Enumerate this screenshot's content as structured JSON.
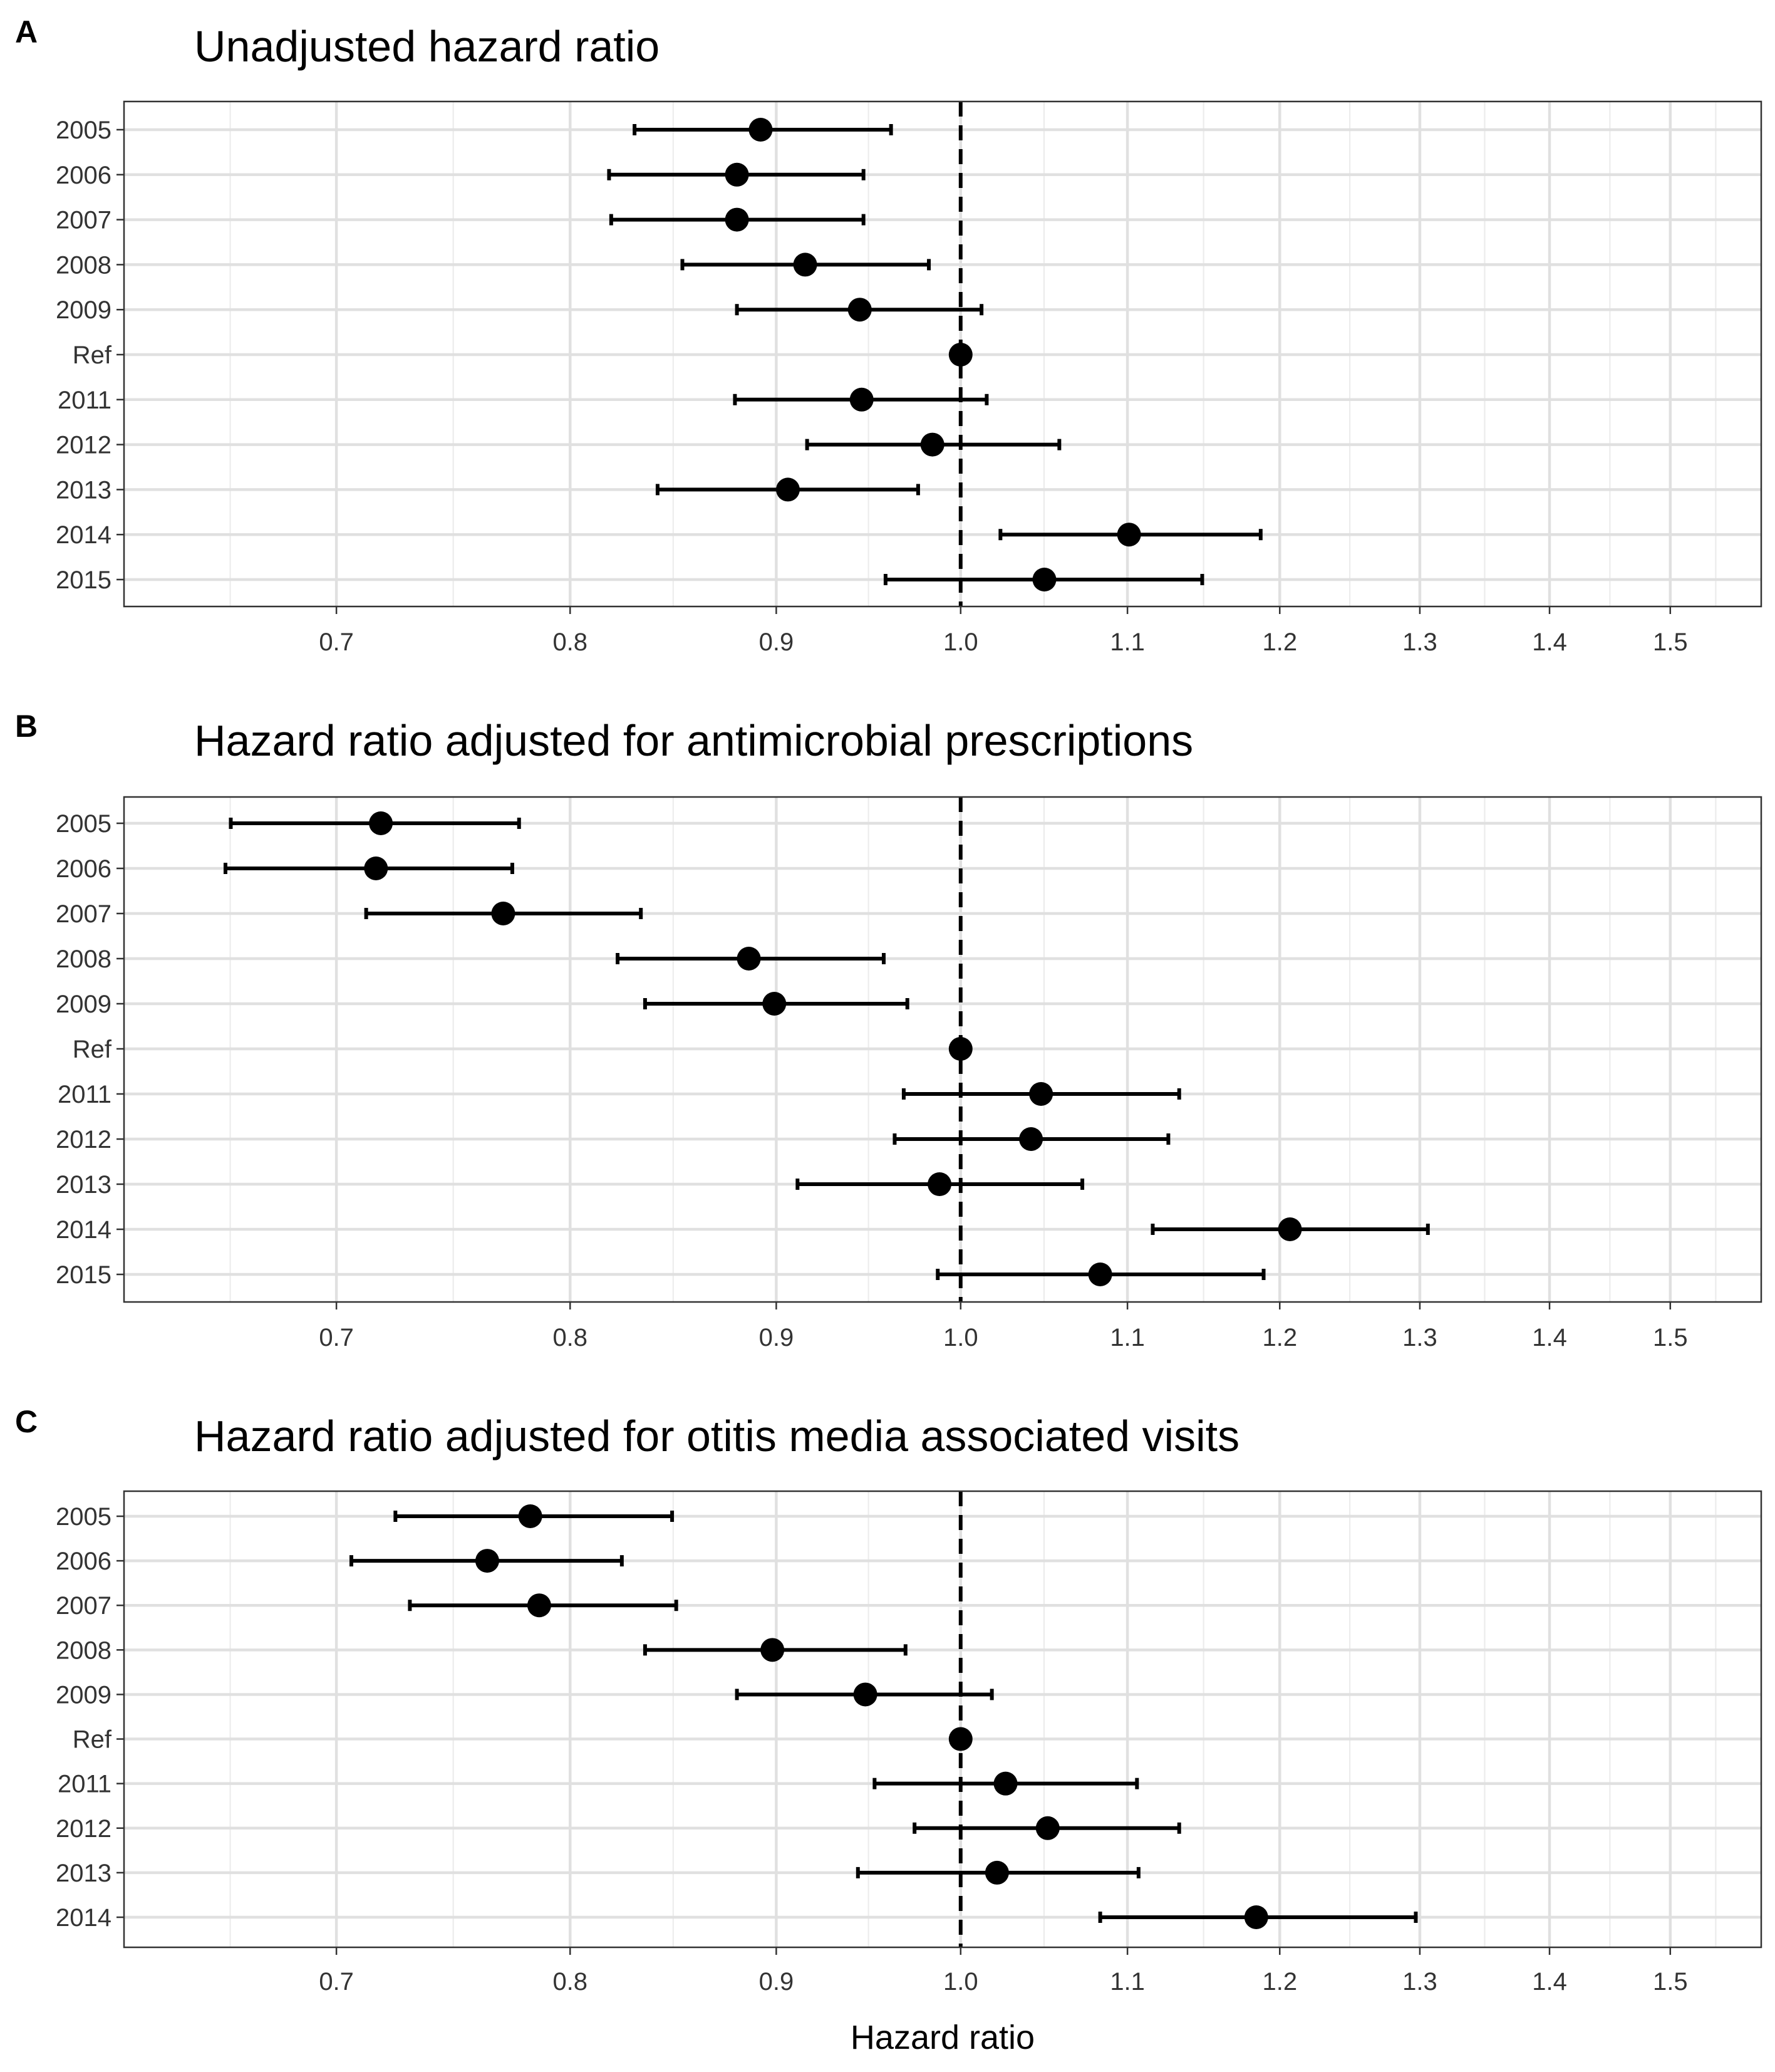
{
  "figure": {
    "xlabel": "Hazard ratio",
    "colors": {
      "mark": "#000000",
      "grid": "#e0e0e0",
      "border": "#333333",
      "background": "#ffffff"
    }
  },
  "chart_data": [
    {
      "type": "forest",
      "panel_tag": "A",
      "title": "Unadjusted hazard ratio",
      "xscale": "log",
      "xlim": [
        0.62,
        1.58
      ],
      "xticks": [
        0.7,
        0.8,
        0.9,
        1.0,
        1.1,
        1.2,
        1.3,
        1.4,
        1.5
      ],
      "xtick_labels": [
        "0.7",
        "0.8",
        "0.9",
        "1.0",
        "1.1",
        "1.2",
        "1.3",
        "1.4",
        "1.5"
      ],
      "reference_line": 1.0,
      "grid": true,
      "categories": [
        "2005",
        "2006",
        "2007",
        "2008",
        "2009",
        "Ref",
        "2011",
        "2012",
        "2013",
        "2014",
        "2015"
      ],
      "estimate": [
        0.892,
        0.88,
        0.88,
        0.915,
        0.944,
        1.0,
        0.945,
        0.984,
        0.906,
        1.101,
        1.049
      ],
      "lower": [
        0.83,
        0.818,
        0.819,
        0.853,
        0.88,
        null,
        0.879,
        0.916,
        0.841,
        1.023,
        0.958
      ],
      "upper": [
        0.961,
        0.946,
        0.946,
        0.982,
        1.012,
        null,
        1.015,
        1.058,
        0.976,
        1.187,
        1.148
      ]
    },
    {
      "type": "forest",
      "panel_tag": "B",
      "title": "Hazard ratio adjusted for antimicrobial prescriptions",
      "xscale": "log",
      "xlim": [
        0.62,
        1.58
      ],
      "xticks": [
        0.7,
        0.8,
        0.9,
        1.0,
        1.1,
        1.2,
        1.3,
        1.4,
        1.5
      ],
      "xtick_labels": [
        "0.7",
        "0.8",
        "0.9",
        "1.0",
        "1.1",
        "1.2",
        "1.3",
        "1.4",
        "1.5"
      ],
      "reference_line": 1.0,
      "grid": true,
      "categories": [
        "2005",
        "2006",
        "2007",
        "2008",
        "2009",
        "Ref",
        "2011",
        "2012",
        "2013",
        "2014",
        "2015"
      ],
      "estimate": [
        0.718,
        0.716,
        0.77,
        0.886,
        0.899,
        1.0,
        1.047,
        1.041,
        0.988,
        1.207,
        1.083
      ],
      "lower": [
        0.659,
        0.657,
        0.712,
        0.822,
        0.835,
        null,
        0.968,
        0.963,
        0.911,
        1.116,
        0.987
      ],
      "upper": [
        0.777,
        0.774,
        0.833,
        0.957,
        0.97,
        null,
        1.133,
        1.126,
        1.072,
        1.306,
        1.189
      ]
    },
    {
      "type": "forest",
      "panel_tag": "C",
      "title": "Hazard ratio adjusted for otitis media associated visits",
      "xscale": "log",
      "xlim": [
        0.62,
        1.58
      ],
      "xticks": [
        0.7,
        0.8,
        0.9,
        1.0,
        1.1,
        1.2,
        1.3,
        1.4,
        1.5
      ],
      "xtick_labels": [
        "0.7",
        "0.8",
        "0.9",
        "1.0",
        "1.1",
        "1.2",
        "1.3",
        "1.4",
        "1.5"
      ],
      "reference_line": 1.0,
      "grid": true,
      "categories": [
        "2005",
        "2006",
        "2007",
        "2008",
        "2009",
        "Ref",
        "2011",
        "2012",
        "2013",
        "2014"
      ],
      "estimate": [
        0.782,
        0.763,
        0.786,
        0.898,
        0.947,
        1.0,
        1.026,
        1.051,
        1.021,
        1.184
      ],
      "lower": [
        0.724,
        0.706,
        0.73,
        0.835,
        0.88,
        null,
        0.952,
        0.974,
        0.943,
        1.083
      ],
      "upper": [
        0.848,
        0.824,
        0.85,
        0.969,
        1.018,
        null,
        1.106,
        1.133,
        1.107,
        1.297
      ]
    }
  ]
}
